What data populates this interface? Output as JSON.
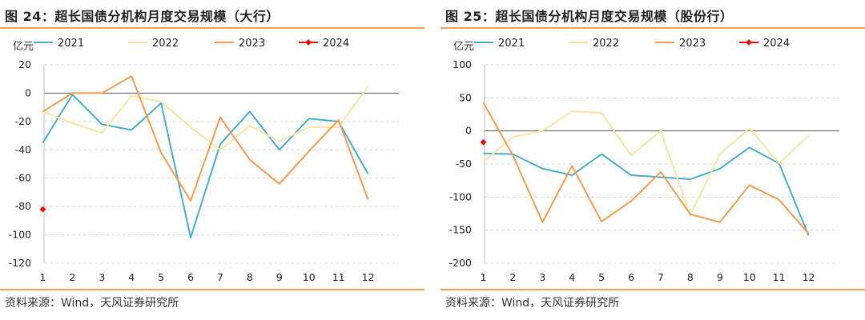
{
  "chart_data": [
    {
      "type": "line",
      "title": "图 24：超长国债分机构月度交易规模（大行）",
      "ylabel": "亿元",
      "source": "资料来源：Wind，天风证券研究所",
      "categories": [
        "1",
        "2",
        "3",
        "4",
        "5",
        "6",
        "7",
        "8",
        "9",
        "10",
        "11",
        "12"
      ],
      "ylim": [
        -120,
        20
      ],
      "yticks": [
        20,
        0,
        -20,
        -40,
        -60,
        -80,
        -100,
        -120
      ],
      "legend_position": "top",
      "grid": "horizontal-dashed",
      "series": [
        {
          "name": "2021",
          "color": "#4bacc6",
          "marker": false,
          "values": [
            -35,
            -1,
            -22,
            -26,
            -7,
            -102,
            -36,
            -13,
            -40,
            -18,
            -20,
            -57
          ]
        },
        {
          "name": "2022",
          "color": "#f5e6a3",
          "marker": false,
          "values": [
            -13,
            -21,
            -28,
            -2,
            -6,
            -24,
            -40,
            -23,
            -34,
            -24,
            -24,
            5
          ]
        },
        {
          "name": "2023",
          "color": "#f59a50",
          "marker": false,
          "values": [
            -13,
            0,
            0,
            12,
            -42,
            -76,
            -17,
            -47,
            -64,
            -41,
            -19,
            -75
          ]
        },
        {
          "name": "2024",
          "color": "#e8100c",
          "marker": true,
          "values": [
            -82,
            null,
            null,
            null,
            null,
            null,
            null,
            null,
            null,
            null,
            null,
            null
          ]
        }
      ]
    },
    {
      "type": "line",
      "title": "图 25：超长国债分机构月度交易规模（股份行）",
      "ylabel": "亿元",
      "source": "资料来源：Wind，天风证券研究所",
      "categories": [
        "1",
        "2",
        "3",
        "4",
        "5",
        "6",
        "7",
        "8",
        "9",
        "10",
        "11",
        "12"
      ],
      "ylim": [
        -200,
        100
      ],
      "yticks": [
        100,
        50,
        0,
        -50,
        -100,
        -150,
        -200
      ],
      "legend_position": "top",
      "grid": "horizontal-dashed",
      "series": [
        {
          "name": "2021",
          "color": "#4bacc6",
          "marker": false,
          "values": [
            -34,
            -35,
            -57,
            -67,
            -35,
            -67,
            -70,
            -73,
            -57,
            -25,
            -49,
            -158
          ]
        },
        {
          "name": "2022",
          "color": "#f5e6a3",
          "marker": false,
          "values": [
            -47,
            -9,
            0,
            30,
            27,
            -37,
            0,
            -128,
            -35,
            4,
            -49,
            -7
          ]
        },
        {
          "name": "2023",
          "color": "#f59a50",
          "marker": false,
          "values": [
            43,
            -37,
            -138,
            -53,
            -137,
            -106,
            -62,
            -126,
            -138,
            -82,
            -104,
            -155
          ]
        },
        {
          "name": "2024",
          "color": "#e8100c",
          "marker": true,
          "values": [
            -17,
            null,
            null,
            null,
            null,
            null,
            null,
            null,
            null,
            null,
            null,
            null
          ]
        }
      ]
    }
  ]
}
